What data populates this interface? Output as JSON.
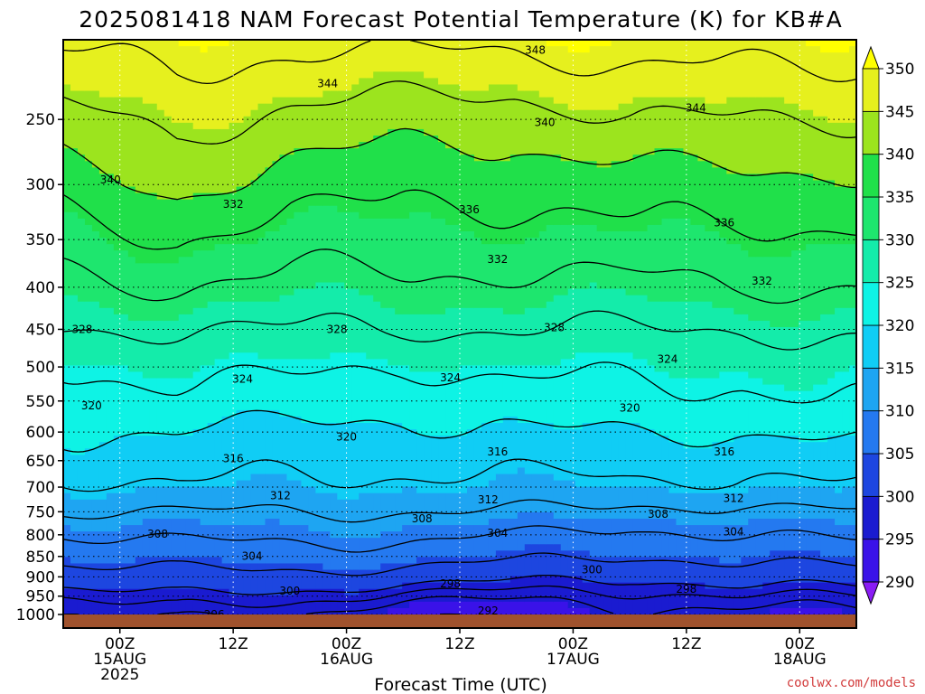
{
  "chart_data": {
    "type": "heatmap",
    "title": "2025081418 NAM Forecast Potential Temperature (K) for KB#A",
    "xlabel": "Forecast Time (UTC)",
    "ylabel": "",
    "credit": "coolwx.com/models",
    "y_ticks": [
      250,
      300,
      350,
      400,
      450,
      500,
      550,
      600,
      650,
      700,
      750,
      800,
      850,
      900,
      950,
      1000
    ],
    "y_tick_labels": [
      "250",
      "300",
      "350",
      "400",
      "450",
      "500",
      "550",
      "600",
      "650",
      "700",
      "750",
      "800",
      "850",
      "900",
      "950",
      "1000"
    ],
    "x_ticks": [
      {
        "hour": 6,
        "lines": [
          "00Z",
          "15AUG",
          "2025"
        ]
      },
      {
        "hour": 18,
        "lines": [
          "12Z"
        ]
      },
      {
        "hour": 30,
        "lines": [
          "00Z",
          "16AUG"
        ]
      },
      {
        "hour": 42,
        "lines": [
          "12Z"
        ]
      },
      {
        "hour": 54,
        "lines": [
          "00Z",
          "17AUG"
        ]
      },
      {
        "hour": 66,
        "lines": [
          "12Z"
        ]
      },
      {
        "hour": 78,
        "lines": [
          "00Z",
          "18AUG"
        ]
      }
    ],
    "x_range_hours": [
      0,
      84
    ],
    "y_range_hPa": [
      200,
      1025
    ],
    "y_scale": "log-pressure",
    "colorbar": {
      "levels": [
        290,
        295,
        300,
        305,
        310,
        315,
        320,
        325,
        330,
        335,
        340,
        345,
        350
      ],
      "labels": [
        "290",
        "295",
        "300",
        "305",
        "310",
        "315",
        "320",
        "325",
        "330",
        "335",
        "340",
        "345",
        "350"
      ],
      "colors": [
        "#8a1cf5",
        "#3a12e8",
        "#1a1bd0",
        "#1d46e0",
        "#2479f0",
        "#1ea5f2",
        "#10cdf5",
        "#0ef3e5",
        "#14ecaa",
        "#1ee66e",
        "#20e04a",
        "#9ce41e",
        "#e6f01e",
        "#ffff00"
      ]
    },
    "contour_levels_shown": [
      292,
      296,
      298,
      300,
      304,
      308,
      312,
      316,
      320,
      324,
      328,
      332,
      336,
      340,
      344,
      348
    ],
    "profile_timesteps_hours": [
      0,
      12,
      24,
      36,
      48,
      60,
      72,
      84
    ],
    "profile_pressures_hPa": [
      1000,
      950,
      900,
      850,
      800,
      750,
      700,
      650,
      600,
      550,
      500,
      450,
      400,
      350,
      300,
      250,
      200
    ],
    "theta_K": [
      [
        296,
        298,
        302,
        305,
        308,
        312,
        315,
        318,
        320,
        322,
        324,
        328,
        331,
        334,
        338,
        343,
        349
      ],
      [
        297,
        300,
        303,
        306,
        309,
        312,
        316,
        318,
        320,
        323,
        325,
        328,
        332,
        336,
        341,
        345,
        350
      ],
      [
        296,
        299,
        303,
        306,
        309,
        312,
        315,
        317,
        319,
        322,
        325,
        328,
        331,
        334,
        338,
        343,
        349
      ],
      [
        293,
        297,
        302,
        306,
        309,
        312,
        315,
        317,
        319,
        321,
        324,
        328,
        331,
        334,
        337,
        342,
        349
      ],
      [
        293,
        297,
        301,
        305,
        308,
        312,
        315,
        317,
        320,
        322,
        325,
        328,
        331,
        334,
        337,
        342,
        349
      ],
      [
        295,
        297,
        300,
        304,
        307,
        311,
        315,
        318,
        320,
        323,
        325,
        328,
        331,
        335,
        338,
        344,
        350
      ],
      [
        295,
        298,
        302,
        305,
        308,
        311,
        315,
        317,
        320,
        323,
        325,
        328,
        332,
        335,
        339,
        344,
        350
      ],
      [
        295,
        298,
        302,
        306,
        309,
        312,
        316,
        318,
        321,
        324,
        326,
        329,
        332,
        335,
        339,
        344,
        350
      ]
    ],
    "contour_labels": [
      {
        "text": "348",
        "hour": 50,
        "p": 206
      },
      {
        "text": "344",
        "hour": 28,
        "p": 226
      },
      {
        "text": "344",
        "hour": 67,
        "p": 242
      },
      {
        "text": "340",
        "hour": 51,
        "p": 252
      },
      {
        "text": "340",
        "hour": 5,
        "p": 296
      },
      {
        "text": "336",
        "hour": 43,
        "p": 322
      },
      {
        "text": "336",
        "hour": 70,
        "p": 334
      },
      {
        "text": "332",
        "hour": 18,
        "p": 317
      },
      {
        "text": "332",
        "hour": 46,
        "p": 370
      },
      {
        "text": "332",
        "hour": 74,
        "p": 393
      },
      {
        "text": "328",
        "hour": 2,
        "p": 450
      },
      {
        "text": "328",
        "hour": 29,
        "p": 450
      },
      {
        "text": "328",
        "hour": 52,
        "p": 448
      },
      {
        "text": "324",
        "hour": 19,
        "p": 517
      },
      {
        "text": "324",
        "hour": 41,
        "p": 515
      },
      {
        "text": "324",
        "hour": 64,
        "p": 489
      },
      {
        "text": "320",
        "hour": 3,
        "p": 557
      },
      {
        "text": "320",
        "hour": 30,
        "p": 608
      },
      {
        "text": "320",
        "hour": 60,
        "p": 561
      },
      {
        "text": "316",
        "hour": 18,
        "p": 646
      },
      {
        "text": "316",
        "hour": 46,
        "p": 634
      },
      {
        "text": "316",
        "hour": 70,
        "p": 634
      },
      {
        "text": "312",
        "hour": 23,
        "p": 717
      },
      {
        "text": "312",
        "hour": 45,
        "p": 725
      },
      {
        "text": "312",
        "hour": 71,
        "p": 722
      },
      {
        "text": "308",
        "hour": 10,
        "p": 798
      },
      {
        "text": "308",
        "hour": 38,
        "p": 765
      },
      {
        "text": "308",
        "hour": 63,
        "p": 755
      },
      {
        "text": "304",
        "hour": 20,
        "p": 849
      },
      {
        "text": "304",
        "hour": 46,
        "p": 796
      },
      {
        "text": "304",
        "hour": 71,
        "p": 793
      },
      {
        "text": "300",
        "hour": 24,
        "p": 936
      },
      {
        "text": "300",
        "hour": 56,
        "p": 882
      },
      {
        "text": "298",
        "hour": 41,
        "p": 917
      },
      {
        "text": "298",
        "hour": 66,
        "p": 932
      },
      {
        "text": "296",
        "hour": 16,
        "p": 1000
      },
      {
        "text": "292",
        "hour": 45,
        "p": 990
      }
    ]
  }
}
